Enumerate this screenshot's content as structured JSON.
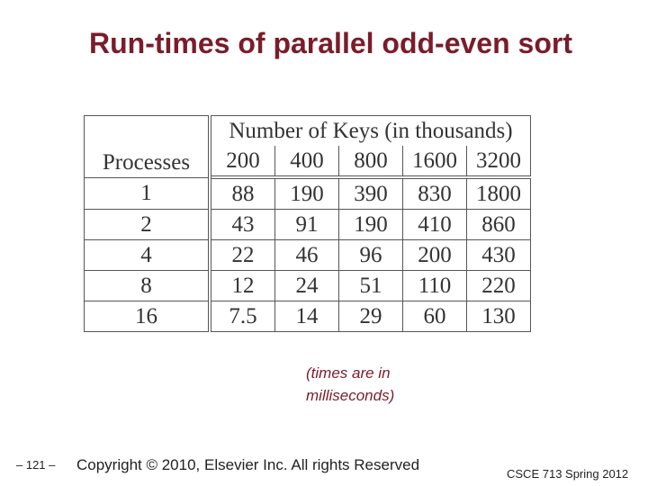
{
  "title": "Run-times of parallel odd-even sort",
  "table": {
    "header": {
      "processes": "Processes",
      "keys": "Number of Keys (in thousands)",
      "columns": [
        200,
        400,
        800,
        1600,
        3200
      ]
    },
    "rows": [
      [
        1,
        88,
        190,
        390,
        830,
        1800
      ],
      [
        2,
        43,
        91,
        190,
        410,
        860
      ],
      [
        4,
        22,
        46,
        96,
        200,
        430
      ],
      [
        8,
        12,
        24,
        51,
        110,
        220
      ],
      [
        16,
        7.5,
        14,
        29,
        60,
        130
      ]
    ]
  },
  "note": [
    "(times are in",
    "milliseconds)"
  ],
  "footer": {
    "page": "– 121 –",
    "copyright": "Copyright © 2010, Elsevier Inc. All rights Reserved",
    "course": "CSCE 713 Spring 2012"
  }
}
